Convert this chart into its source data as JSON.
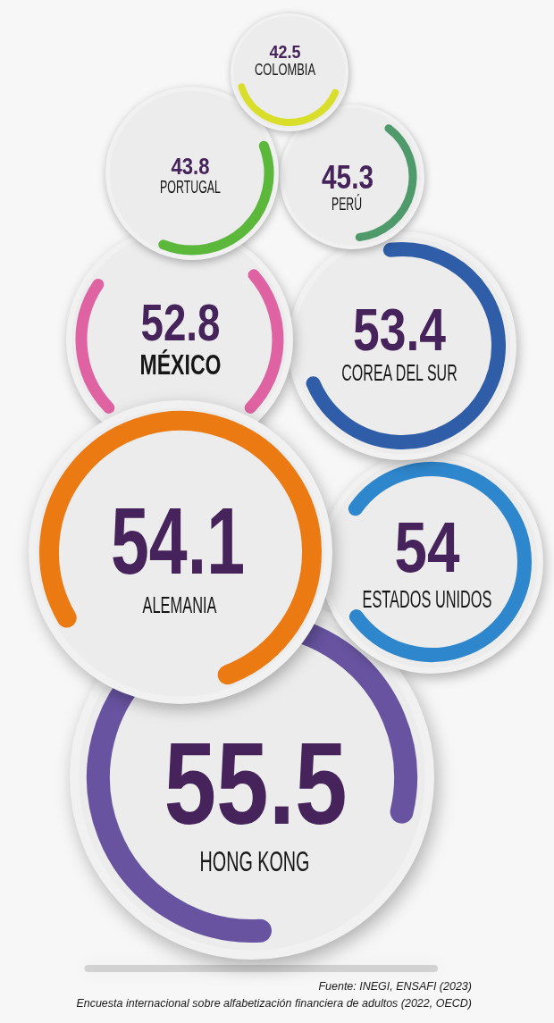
{
  "chart_data": {
    "type": "other",
    "categories": [
      "COLOMBIA",
      "PORTUGAL",
      "PERÚ",
      "MÉXICO",
      "COREA DEL SUR",
      "ALEMANIA",
      "ESTADOS UNIDOS",
      "HONG KONG"
    ],
    "values": [
      42.5,
      43.8,
      45.3,
      52.8,
      53.4,
      54.1,
      54,
      55.5
    ],
    "colors": [
      "#d8de2a",
      "#5bb83b",
      "#4f9a6a",
      "#df63a3",
      "#2f5da8",
      "#ec7a12",
      "#2e86cc",
      "#6753a0"
    ],
    "data_labels": true,
    "annotations": [
      "Fuente: INEGI, ENSAFI (2023)",
      "Encuesta internacional sobre alfabetización financiera de adultos (2022, OECD)"
    ]
  }
}
